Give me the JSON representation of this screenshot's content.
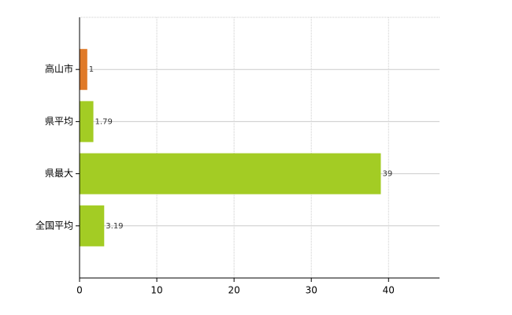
{
  "chart_data": {
    "type": "bar",
    "orientation": "horizontal",
    "categories": [
      "高山市",
      "県平均",
      "県最大",
      "全国平均"
    ],
    "values": [
      1,
      1.79,
      39,
      3.19
    ],
    "colors": [
      "#e07a28",
      "#a3cc24",
      "#a3cc24",
      "#a3cc24"
    ],
    "xlim": [
      0,
      46.6
    ],
    "xticks": [
      0,
      10,
      20,
      30,
      40
    ],
    "grid": true
  }
}
